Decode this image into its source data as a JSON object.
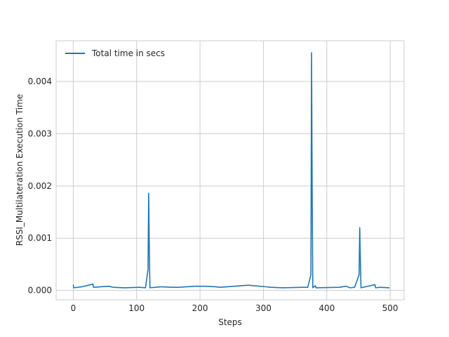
{
  "chart_data": {
    "type": "line",
    "title": "",
    "xlabel": "Steps",
    "ylabel": "RSSI_Multilateration Execution Time",
    "xlim": [
      -27,
      522
    ],
    "ylim": [
      -0.00018,
      0.00478
    ],
    "xticks": [
      0,
      100,
      200,
      300,
      400,
      500
    ],
    "xtick_labels": [
      "0",
      "100",
      "200",
      "300",
      "400",
      "500"
    ],
    "yticks": [
      0.0,
      0.001,
      0.002,
      0.003,
      0.004
    ],
    "ytick_labels": [
      "0.000",
      "0.001",
      "0.002",
      "0.003",
      "0.004"
    ],
    "grid": true,
    "legend_position": "top-left",
    "series_color": "#1f77b4",
    "series": [
      {
        "name": "Total time in secs",
        "x_range": [
          0,
          499
        ],
        "baseline": 4.5e-05,
        "points": [
          [
            0,
            0.00011
          ],
          [
            1,
            5e-05
          ],
          [
            14,
            7e-05
          ],
          [
            31,
            0.00012
          ],
          [
            32,
            6e-05
          ],
          [
            56,
            8e-05
          ],
          [
            63,
            6e-05
          ],
          [
            81,
            5e-05
          ],
          [
            104,
            6e-05
          ],
          [
            114,
            5e-05
          ],
          [
            118,
            0.0004
          ],
          [
            119,
            0.00186
          ],
          [
            120,
            0.0008
          ],
          [
            121,
            5e-05
          ],
          [
            139,
            7e-05
          ],
          [
            155,
            6e-05
          ],
          [
            166,
            6e-05
          ],
          [
            192,
            8e-05
          ],
          [
            208,
            8e-05
          ],
          [
            224,
            7e-05
          ],
          [
            232,
            6e-05
          ],
          [
            243,
            7e-05
          ],
          [
            276,
            0.0001
          ],
          [
            312,
            6e-05
          ],
          [
            330,
            5e-05
          ],
          [
            363,
            6e-05
          ],
          [
            370,
            6e-05
          ],
          [
            375,
            0.0003
          ],
          [
            376,
            0.00455
          ],
          [
            377,
            0.0018
          ],
          [
            378,
            5e-05
          ],
          [
            382,
            9e-05
          ],
          [
            383,
            5e-05
          ],
          [
            420,
            6e-05
          ],
          [
            430,
            8e-05
          ],
          [
            437,
            5e-05
          ],
          [
            444,
            6e-05
          ],
          [
            451,
            0.0003
          ],
          [
            452,
            0.0012
          ],
          [
            453,
            0.0006
          ],
          [
            454,
            5e-05
          ],
          [
            476,
            0.00011
          ],
          [
            477,
            5e-05
          ],
          [
            485,
            6e-05
          ],
          [
            499,
            5e-05
          ]
        ]
      }
    ]
  }
}
